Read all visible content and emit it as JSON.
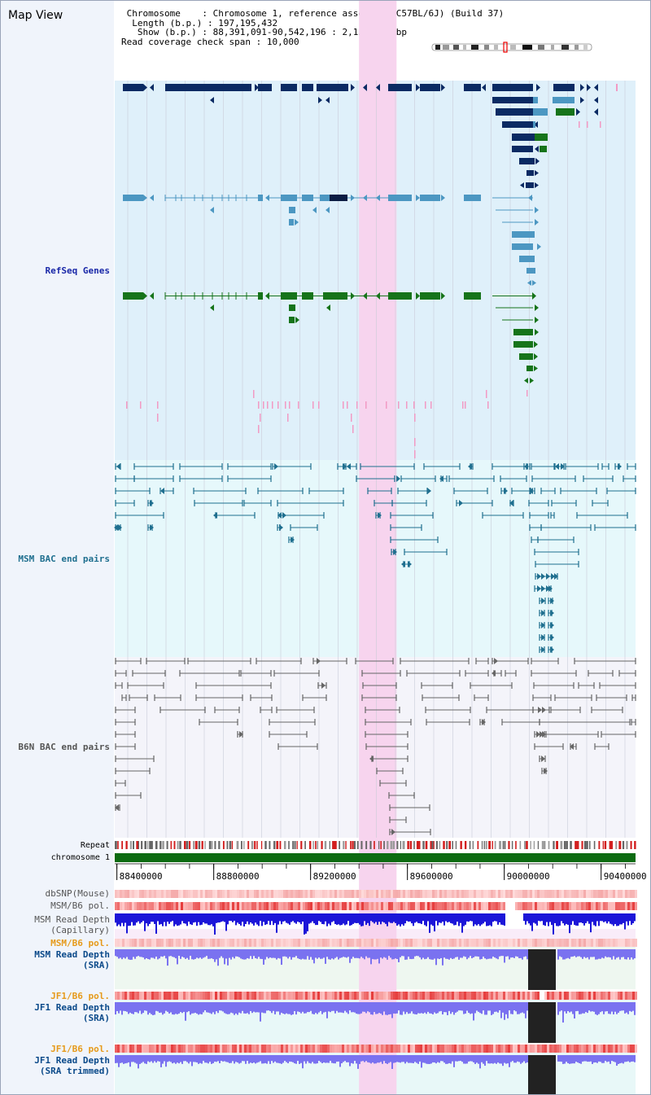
{
  "page_title": "Map View",
  "info": {
    "chromosome_label": "Chromosome",
    "chromosome_value": "Chromosome 1, reference assembly (C57BL/6J) (Build 37)",
    "length_label": "Length (b.p.)",
    "length_value": "197,195,432",
    "show_label": "Show (b.p.)",
    "show_value": "88,391,091-90,542,196 : 2,151,106 bp",
    "coverage_label": "Read coverage check span",
    "coverage_value": "10,000"
  },
  "tracks": {
    "refseq": "RefSeq Genes",
    "msm_bac": "MSM BAC end pairs",
    "b6n_bac": "B6N BAC end pairs",
    "repeat": "Repeat",
    "chromosome": "chromosome 1",
    "dbsnp": "dbSNP(Mouse)",
    "msm_b6_pol": "MSM/B6 pol.",
    "msm_depth_cap_1": "MSM Read Depth",
    "msm_depth_cap_2": "(Capillary)",
    "msm_b6_pol_2": "MSM/B6 pol.",
    "msm_depth_sra_1": "MSM Read Depth",
    "msm_depth_sra_2": "(SRA)",
    "jf1_b6_pol": "JF1/B6 pol.",
    "jf1_depth_sra_1": "JF1 Read Depth",
    "jf1_depth_sra_2": "(SRA)",
    "jf1_b6_pol_2": "JF1/B6 pol.",
    "jf1_depth_trim_1": "JF1 Read Depth",
    "jf1_depth_trim_2": "(SRA trimmed)"
  },
  "axis": {
    "ticks": [
      "88400000",
      "88800000",
      "89200000",
      "89600000",
      "90000000",
      "90400000"
    ],
    "range": [
      88391091,
      90542196
    ]
  },
  "highlight": {
    "start": 89400000,
    "end": 89555000
  },
  "colors": {
    "refseq_bg": "#dff0fa",
    "msm_bac_bg": "#e6f8fb",
    "b6n_bac_bg": "#f4f4fa",
    "highlight": "#f7d4ee",
    "gene_dark": "#0b2a63",
    "gene_mid": "#4c97c2",
    "gene_green": "#16741a",
    "msm_bac": "#1f6f8f",
    "b6n_bac": "#666666",
    "chrom_band": "#0d6b11",
    "msm_label": "#0b4a8a",
    "pol_label": "#e69a1a",
    "depth_blue": "#1c16d8",
    "depth_purple": "#7a72f0",
    "gap_black": "#222222"
  }
}
